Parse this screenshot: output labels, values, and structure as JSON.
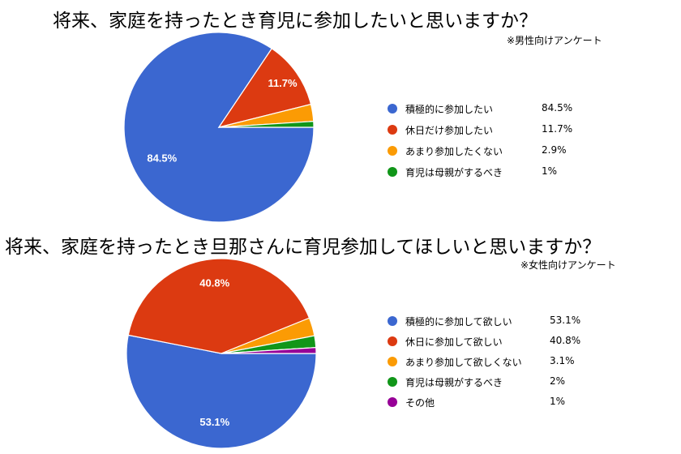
{
  "chart_data": [
    {
      "type": "pie",
      "title": "将来、家庭を持ったとき育児に参加したいと思いますか？",
      "subtitle": "※男性向けアンケート",
      "categories": [
        "積極的に参加したい",
        "休日だけ参加したい",
        "あまり参加したくない",
        "育児は母親がするべき"
      ],
      "values": [
        84.5,
        11.7,
        2.9,
        1
      ],
      "value_labels": [
        "84.5%",
        "11.7%",
        "2.9%",
        "1%"
      ],
      "slice_labels": [
        "84.5%",
        "11.7%",
        "",
        ""
      ],
      "colors": [
        "#3b67d0",
        "#dc3a11",
        "#fb9b04",
        "#119619"
      ],
      "legend": "right"
    },
    {
      "type": "pie",
      "title": "将来、家庭を持ったとき旦那さんに育児参加してほしいと思いますか？",
      "subtitle": "※女性向けアンケート",
      "categories": [
        "積極的に参加して欲しい",
        "休日に参加して欲しい",
        "あまり参加して欲しくない",
        "育児は母親がするべき",
        "その他"
      ],
      "values": [
        53.1,
        40.8,
        3.1,
        2,
        1
      ],
      "value_labels": [
        "53.1%",
        "40.8%",
        "3.1%",
        "2%",
        "1%"
      ],
      "slice_labels": [
        "53.1%",
        "40.8%",
        "",
        "",
        ""
      ],
      "colors": [
        "#3b67d0",
        "#dc3a11",
        "#fb9b04",
        "#119619",
        "#970097"
      ],
      "legend": "right"
    }
  ]
}
